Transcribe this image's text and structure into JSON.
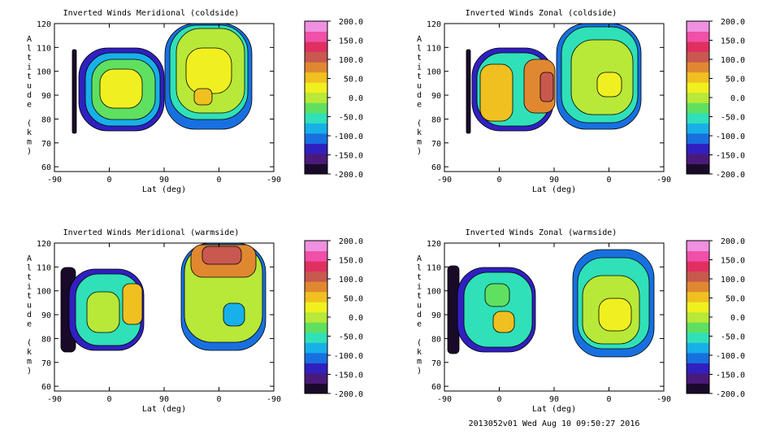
{
  "footer": "2013052v01 Wed Aug 10 09:50:27 2016",
  "colorbar_ticks": [
    "200.0",
    "150.0",
    "100.0",
    "50.0",
    "0.0",
    "-50.0",
    "-100.0",
    "-150.0",
    "-200.0"
  ],
  "colorbar_colors": [
    "#1a0a2a",
    "#4a1a7a",
    "#3020c0",
    "#1870e0",
    "#18b0e8",
    "#30e0b8",
    "#60e060",
    "#b8e838",
    "#f0f020",
    "#f0c020",
    "#e08830",
    "#c85850",
    "#e03060",
    "#f050a8",
    "#f090e0"
  ],
  "chart_data": [
    {
      "type": "heatmap",
      "title": "Inverted Winds Meridional (coldside)",
      "xlabel": "Lat (deg)",
      "ylabel": "Altitude (km)",
      "x_ticks": [
        "-90",
        "0",
        "90",
        "0",
        "-90"
      ],
      "y_ticks": [
        "60",
        "70",
        "80",
        "90",
        "100",
        "110",
        "120"
      ],
      "ylim": [
        58,
        120
      ],
      "colorbar_range": [
        -200,
        200
      ]
    },
    {
      "type": "heatmap",
      "title": "Inverted Winds Zonal (coldside)",
      "xlabel": "Lat (deg)",
      "ylabel": "Altitude (km)",
      "x_ticks": [
        "-90",
        "0",
        "90",
        "0",
        "-90"
      ],
      "y_ticks": [
        "60",
        "70",
        "80",
        "90",
        "100",
        "110",
        "120"
      ],
      "ylim": [
        58,
        120
      ],
      "colorbar_range": [
        -200,
        200
      ]
    },
    {
      "type": "heatmap",
      "title": "Inverted Winds Meridional (warmside)",
      "xlabel": "Lat (deg)",
      "ylabel": "Altitude (km)",
      "x_ticks": [
        "-90",
        "0",
        "90",
        "0",
        "-90"
      ],
      "y_ticks": [
        "60",
        "70",
        "80",
        "90",
        "100",
        "110",
        "120"
      ],
      "ylim": [
        58,
        120
      ],
      "colorbar_range": [
        -200,
        200
      ]
    },
    {
      "type": "heatmap",
      "title": "Inverted Winds Zonal (warmside)",
      "xlabel": "Lat (deg)",
      "ylabel": "Altitude (km)",
      "x_ticks": [
        "-90",
        "0",
        "90",
        "0",
        "-90"
      ],
      "y_ticks": [
        "60",
        "70",
        "80",
        "90",
        "100",
        "110",
        "120"
      ],
      "ylim": [
        58,
        120
      ],
      "colorbar_range": [
        -200,
        200
      ]
    }
  ]
}
